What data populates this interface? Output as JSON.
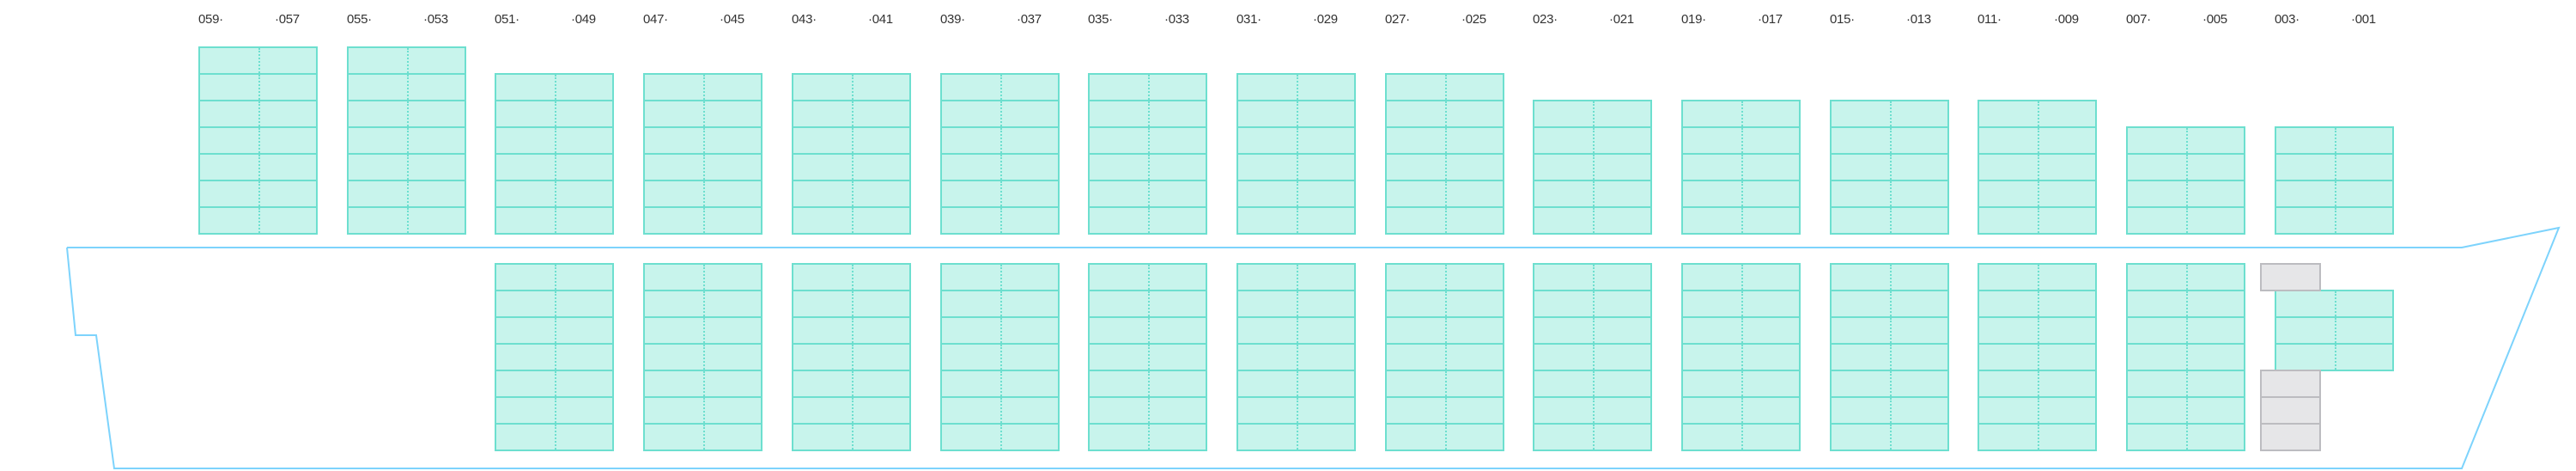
{
  "colors": {
    "slot_fill": "#c8f4ec",
    "slot_border": "#6ddfcf",
    "blocked_fill": "#e6e6e8",
    "blocked_border": "#bcbcc0",
    "hull": "#7dd3fc"
  },
  "bays": [
    {
      "left_label": "059·",
      "right_label": "·057",
      "deck_tiers": 7,
      "hold_tiers": 0
    },
    {
      "left_label": "055·",
      "right_label": "·053",
      "deck_tiers": 7,
      "hold_tiers": 0
    },
    {
      "left_label": "051·",
      "right_label": "·049",
      "deck_tiers": 6,
      "hold_tiers": 7
    },
    {
      "left_label": "047·",
      "right_label": "·045",
      "deck_tiers": 6,
      "hold_tiers": 7
    },
    {
      "left_label": "043·",
      "right_label": "·041",
      "deck_tiers": 6,
      "hold_tiers": 7
    },
    {
      "left_label": "039·",
      "right_label": "·037",
      "deck_tiers": 6,
      "hold_tiers": 7
    },
    {
      "left_label": "035·",
      "right_label": "·033",
      "deck_tiers": 6,
      "hold_tiers": 7
    },
    {
      "left_label": "031·",
      "right_label": "·029",
      "deck_tiers": 6,
      "hold_tiers": 7
    },
    {
      "left_label": "027·",
      "right_label": "·025",
      "deck_tiers": 6,
      "hold_tiers": 7
    },
    {
      "left_label": "023·",
      "right_label": "·021",
      "deck_tiers": 5,
      "hold_tiers": 7
    },
    {
      "left_label": "019·",
      "right_label": "·017",
      "deck_tiers": 5,
      "hold_tiers": 7
    },
    {
      "left_label": "015·",
      "right_label": "·013",
      "deck_tiers": 5,
      "hold_tiers": 7
    },
    {
      "left_label": "011·",
      "right_label": "·009",
      "deck_tiers": 5,
      "hold_tiers": 7
    },
    {
      "left_label": "007·",
      "right_label": "·005",
      "deck_tiers": 4,
      "hold_tiers": 7
    },
    {
      "left_label": "003·",
      "right_label": "·001",
      "deck_tiers": 4,
      "hold_tiers": 0,
      "hold_slot_tiers": [
        2,
        3,
        4
      ],
      "hold_blocked_tiers": [
        1,
        5,
        6,
        7
      ]
    }
  ]
}
